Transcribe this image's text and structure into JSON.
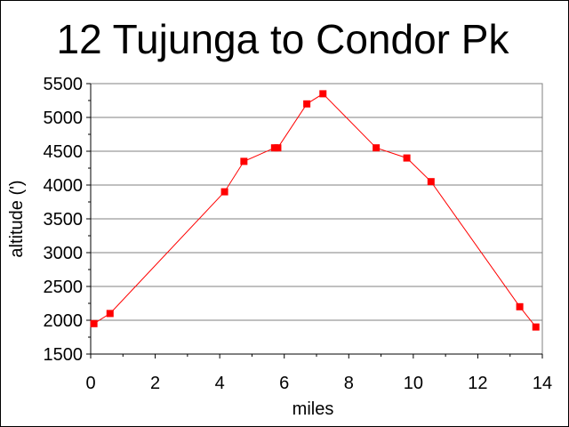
{
  "chart_data": {
    "type": "line",
    "title": "12 Tujunga to Condor Pk",
    "xlabel": "miles",
    "ylabel": "altitude (')",
    "xlim": [
      0,
      14
    ],
    "ylim": [
      1500,
      5500
    ],
    "x_ticks": [
      "0",
      "2",
      "4",
      "6",
      "8",
      "10",
      "12",
      "14"
    ],
    "y_ticks": [
      "5500",
      "5000",
      "4500",
      "4000",
      "3500",
      "3000",
      "2500",
      "2000",
      "1500"
    ],
    "grid": "horizontal",
    "legend": "none",
    "series": [
      {
        "color": "#ff0000",
        "marker": "square",
        "points": [
          {
            "x": 0.1,
            "y": 1950
          },
          {
            "x": 0.6,
            "y": 2100
          },
          {
            "x": 4.15,
            "y": 3900
          },
          {
            "x": 4.75,
            "y": 4350
          },
          {
            "x": 5.7,
            "y": 4550
          },
          {
            "x": 5.8,
            "y": 4550
          },
          {
            "x": 6.7,
            "y": 5200
          },
          {
            "x": 7.2,
            "y": 5350
          },
          {
            "x": 8.85,
            "y": 4550
          },
          {
            "x": 9.8,
            "y": 4400
          },
          {
            "x": 10.55,
            "y": 4050
          },
          {
            "x": 13.3,
            "y": 2200
          },
          {
            "x": 13.8,
            "y": 1900
          }
        ]
      }
    ]
  }
}
